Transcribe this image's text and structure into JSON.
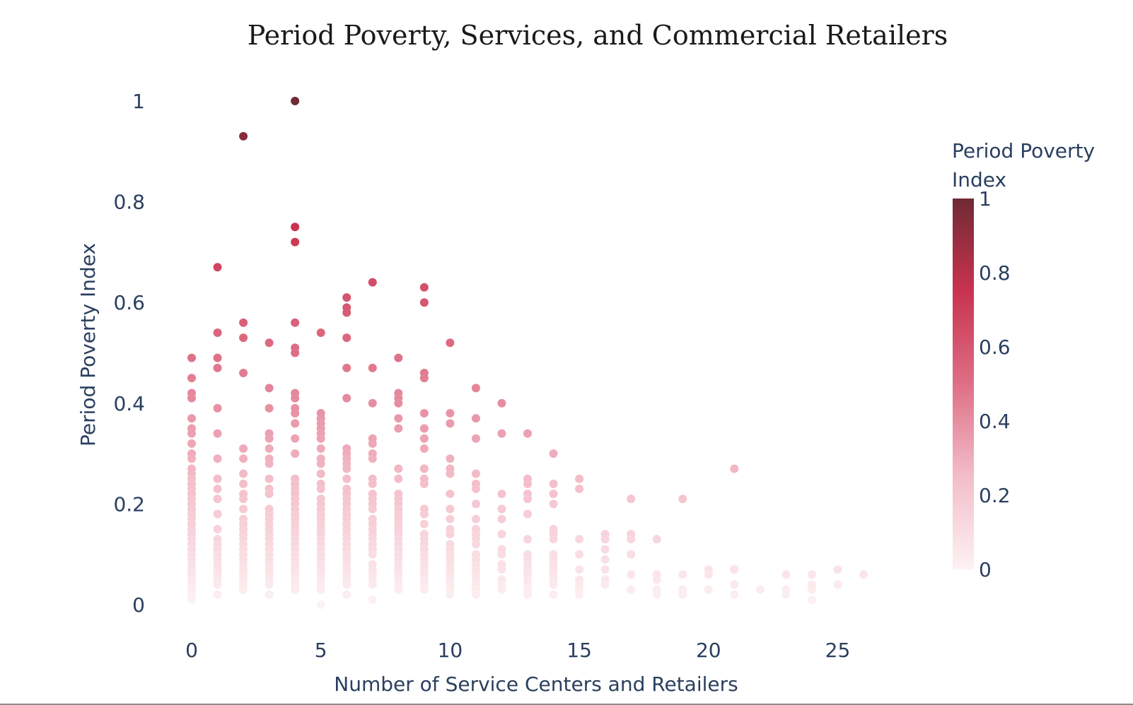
{
  "chart_data": {
    "type": "scatter",
    "title": "Period Poverty, Services, and Commercial Retailers",
    "xlabel": "Number of Service Centers and Retailers",
    "ylabel": "Period Poverty Index",
    "xlim": [
      -2,
      29
    ],
    "ylim": [
      -0.03,
      1.03
    ],
    "xticks": [
      0,
      5,
      10,
      15,
      20,
      25
    ],
    "yticks": [
      0,
      0.2,
      0.4,
      0.6,
      0.8,
      1
    ],
    "grid": false,
    "colorbar": {
      "title": "Period Poverty Index",
      "range": [
        0,
        1
      ],
      "ticks": [
        0,
        0.2,
        0.4,
        0.6,
        0.8,
        1
      ],
      "colors": [
        "#fdf2f3",
        "#f3bdc9",
        "#de6f86",
        "#c9334f",
        "#702a34"
      ]
    },
    "points": [
      [
        0,
        0.49
      ],
      [
        0,
        0.45
      ],
      [
        0,
        0.42
      ],
      [
        0,
        0.41
      ],
      [
        0,
        0.37
      ],
      [
        0,
        0.35
      ],
      [
        0,
        0.34
      ],
      [
        0,
        0.32
      ],
      [
        0,
        0.3
      ],
      [
        0,
        0.29
      ],
      [
        0,
        0.27
      ],
      [
        0,
        0.26
      ],
      [
        0,
        0.25
      ],
      [
        0,
        0.24
      ],
      [
        0,
        0.23
      ],
      [
        0,
        0.22
      ],
      [
        0,
        0.21
      ],
      [
        0,
        0.2
      ],
      [
        0,
        0.19
      ],
      [
        0,
        0.18
      ],
      [
        0,
        0.17
      ],
      [
        0,
        0.16
      ],
      [
        0,
        0.15
      ],
      [
        0,
        0.14
      ],
      [
        0,
        0.13
      ],
      [
        0,
        0.12
      ],
      [
        0,
        0.11
      ],
      [
        0,
        0.1
      ],
      [
        0,
        0.09
      ],
      [
        0,
        0.08
      ],
      [
        0,
        0.07
      ],
      [
        0,
        0.06
      ],
      [
        0,
        0.05
      ],
      [
        0,
        0.04
      ],
      [
        0,
        0.03
      ],
      [
        0,
        0.02
      ],
      [
        0,
        0.01
      ],
      [
        1,
        0.67
      ],
      [
        1,
        0.54
      ],
      [
        1,
        0.49
      ],
      [
        1,
        0.47
      ],
      [
        1,
        0.39
      ],
      [
        1,
        0.34
      ],
      [
        1,
        0.29
      ],
      [
        1,
        0.25
      ],
      [
        1,
        0.23
      ],
      [
        1,
        0.21
      ],
      [
        1,
        0.18
      ],
      [
        1,
        0.15
      ],
      [
        1,
        0.13
      ],
      [
        1,
        0.12
      ],
      [
        1,
        0.11
      ],
      [
        1,
        0.1
      ],
      [
        1,
        0.09
      ],
      [
        1,
        0.08
      ],
      [
        1,
        0.07
      ],
      [
        1,
        0.06
      ],
      [
        1,
        0.05
      ],
      [
        1,
        0.04
      ],
      [
        1,
        0.02
      ],
      [
        2,
        0.93
      ],
      [
        2,
        0.56
      ],
      [
        2,
        0.53
      ],
      [
        2,
        0.46
      ],
      [
        2,
        0.31
      ],
      [
        2,
        0.29
      ],
      [
        2,
        0.26
      ],
      [
        2,
        0.24
      ],
      [
        2,
        0.22
      ],
      [
        2,
        0.21
      ],
      [
        2,
        0.19
      ],
      [
        2,
        0.17
      ],
      [
        2,
        0.16
      ],
      [
        2,
        0.15
      ],
      [
        2,
        0.14
      ],
      [
        2,
        0.13
      ],
      [
        2,
        0.12
      ],
      [
        2,
        0.11
      ],
      [
        2,
        0.1
      ],
      [
        2,
        0.09
      ],
      [
        2,
        0.08
      ],
      [
        2,
        0.07
      ],
      [
        2,
        0.06
      ],
      [
        2,
        0.05
      ],
      [
        2,
        0.04
      ],
      [
        2,
        0.03
      ],
      [
        3,
        0.52
      ],
      [
        3,
        0.43
      ],
      [
        3,
        0.39
      ],
      [
        3,
        0.34
      ],
      [
        3,
        0.33
      ],
      [
        3,
        0.31
      ],
      [
        3,
        0.29
      ],
      [
        3,
        0.28
      ],
      [
        3,
        0.25
      ],
      [
        3,
        0.23
      ],
      [
        3,
        0.22
      ],
      [
        3,
        0.19
      ],
      [
        3,
        0.18
      ],
      [
        3,
        0.17
      ],
      [
        3,
        0.16
      ],
      [
        3,
        0.15
      ],
      [
        3,
        0.14
      ],
      [
        3,
        0.13
      ],
      [
        3,
        0.12
      ],
      [
        3,
        0.11
      ],
      [
        3,
        0.1
      ],
      [
        3,
        0.09
      ],
      [
        3,
        0.08
      ],
      [
        3,
        0.07
      ],
      [
        3,
        0.06
      ],
      [
        3,
        0.05
      ],
      [
        3,
        0.04
      ],
      [
        3,
        0.02
      ],
      [
        4,
        1.0
      ],
      [
        4,
        0.75
      ],
      [
        4,
        0.72
      ],
      [
        4,
        0.56
      ],
      [
        4,
        0.51
      ],
      [
        4,
        0.5
      ],
      [
        4,
        0.42
      ],
      [
        4,
        0.41
      ],
      [
        4,
        0.39
      ],
      [
        4,
        0.38
      ],
      [
        4,
        0.36
      ],
      [
        4,
        0.33
      ],
      [
        4,
        0.3
      ],
      [
        4,
        0.25
      ],
      [
        4,
        0.24
      ],
      [
        4,
        0.23
      ],
      [
        4,
        0.22
      ],
      [
        4,
        0.21
      ],
      [
        4,
        0.2
      ],
      [
        4,
        0.19
      ],
      [
        4,
        0.18
      ],
      [
        4,
        0.17
      ],
      [
        4,
        0.16
      ],
      [
        4,
        0.15
      ],
      [
        4,
        0.14
      ],
      [
        4,
        0.13
      ],
      [
        4,
        0.12
      ],
      [
        4,
        0.11
      ],
      [
        4,
        0.1
      ],
      [
        4,
        0.09
      ],
      [
        4,
        0.08
      ],
      [
        4,
        0.07
      ],
      [
        4,
        0.06
      ],
      [
        4,
        0.05
      ],
      [
        4,
        0.04
      ],
      [
        4,
        0.03
      ],
      [
        5,
        0.54
      ],
      [
        5,
        0.38
      ],
      [
        5,
        0.37
      ],
      [
        5,
        0.36
      ],
      [
        5,
        0.35
      ],
      [
        5,
        0.34
      ],
      [
        5,
        0.33
      ],
      [
        5,
        0.31
      ],
      [
        5,
        0.29
      ],
      [
        5,
        0.28
      ],
      [
        5,
        0.26
      ],
      [
        5,
        0.24
      ],
      [
        5,
        0.23
      ],
      [
        5,
        0.21
      ],
      [
        5,
        0.2
      ],
      [
        5,
        0.19
      ],
      [
        5,
        0.18
      ],
      [
        5,
        0.17
      ],
      [
        5,
        0.16
      ],
      [
        5,
        0.15
      ],
      [
        5,
        0.14
      ],
      [
        5,
        0.13
      ],
      [
        5,
        0.12
      ],
      [
        5,
        0.11
      ],
      [
        5,
        0.1
      ],
      [
        5,
        0.09
      ],
      [
        5,
        0.08
      ],
      [
        5,
        0.07
      ],
      [
        5,
        0.06
      ],
      [
        5,
        0.05
      ],
      [
        5,
        0.04
      ],
      [
        5,
        0.03
      ],
      [
        5,
        0.0
      ],
      [
        6,
        0.61
      ],
      [
        6,
        0.59
      ],
      [
        6,
        0.58
      ],
      [
        6,
        0.53
      ],
      [
        6,
        0.47
      ],
      [
        6,
        0.41
      ],
      [
        6,
        0.31
      ],
      [
        6,
        0.3
      ],
      [
        6,
        0.29
      ],
      [
        6,
        0.28
      ],
      [
        6,
        0.27
      ],
      [
        6,
        0.25
      ],
      [
        6,
        0.23
      ],
      [
        6,
        0.22
      ],
      [
        6,
        0.21
      ],
      [
        6,
        0.2
      ],
      [
        6,
        0.19
      ],
      [
        6,
        0.18
      ],
      [
        6,
        0.17
      ],
      [
        6,
        0.16
      ],
      [
        6,
        0.15
      ],
      [
        6,
        0.14
      ],
      [
        6,
        0.13
      ],
      [
        6,
        0.12
      ],
      [
        6,
        0.11
      ],
      [
        6,
        0.1
      ],
      [
        6,
        0.09
      ],
      [
        6,
        0.08
      ],
      [
        6,
        0.07
      ],
      [
        6,
        0.06
      ],
      [
        6,
        0.05
      ],
      [
        6,
        0.04
      ],
      [
        6,
        0.02
      ],
      [
        7,
        0.64
      ],
      [
        7,
        0.47
      ],
      [
        7,
        0.4
      ],
      [
        7,
        0.33
      ],
      [
        7,
        0.32
      ],
      [
        7,
        0.3
      ],
      [
        7,
        0.29
      ],
      [
        7,
        0.25
      ],
      [
        7,
        0.24
      ],
      [
        7,
        0.22
      ],
      [
        7,
        0.21
      ],
      [
        7,
        0.2
      ],
      [
        7,
        0.19
      ],
      [
        7,
        0.17
      ],
      [
        7,
        0.16
      ],
      [
        7,
        0.15
      ],
      [
        7,
        0.14
      ],
      [
        7,
        0.13
      ],
      [
        7,
        0.12
      ],
      [
        7,
        0.11
      ],
      [
        7,
        0.1
      ],
      [
        7,
        0.08
      ],
      [
        7,
        0.07
      ],
      [
        7,
        0.06
      ],
      [
        7,
        0.05
      ],
      [
        7,
        0.04
      ],
      [
        7,
        0.01
      ],
      [
        8,
        0.49
      ],
      [
        8,
        0.42
      ],
      [
        8,
        0.41
      ],
      [
        8,
        0.4
      ],
      [
        8,
        0.37
      ],
      [
        8,
        0.35
      ],
      [
        8,
        0.27
      ],
      [
        8,
        0.25
      ],
      [
        8,
        0.22
      ],
      [
        8,
        0.21
      ],
      [
        8,
        0.2
      ],
      [
        8,
        0.19
      ],
      [
        8,
        0.18
      ],
      [
        8,
        0.17
      ],
      [
        8,
        0.16
      ],
      [
        8,
        0.15
      ],
      [
        8,
        0.14
      ],
      [
        8,
        0.13
      ],
      [
        8,
        0.12
      ],
      [
        8,
        0.11
      ],
      [
        8,
        0.1
      ],
      [
        8,
        0.09
      ],
      [
        8,
        0.08
      ],
      [
        8,
        0.07
      ],
      [
        8,
        0.06
      ],
      [
        8,
        0.05
      ],
      [
        8,
        0.04
      ],
      [
        8,
        0.03
      ],
      [
        9,
        0.63
      ],
      [
        9,
        0.6
      ],
      [
        9,
        0.46
      ],
      [
        9,
        0.45
      ],
      [
        9,
        0.38
      ],
      [
        9,
        0.35
      ],
      [
        9,
        0.33
      ],
      [
        9,
        0.31
      ],
      [
        9,
        0.27
      ],
      [
        9,
        0.25
      ],
      [
        9,
        0.24
      ],
      [
        9,
        0.19
      ],
      [
        9,
        0.18
      ],
      [
        9,
        0.16
      ],
      [
        9,
        0.14
      ],
      [
        9,
        0.13
      ],
      [
        9,
        0.12
      ],
      [
        9,
        0.11
      ],
      [
        9,
        0.1
      ],
      [
        9,
        0.09
      ],
      [
        9,
        0.08
      ],
      [
        9,
        0.07
      ],
      [
        9,
        0.06
      ],
      [
        9,
        0.05
      ],
      [
        9,
        0.04
      ],
      [
        9,
        0.03
      ],
      [
        10,
        0.52
      ],
      [
        10,
        0.38
      ],
      [
        10,
        0.36
      ],
      [
        10,
        0.29
      ],
      [
        10,
        0.27
      ],
      [
        10,
        0.26
      ],
      [
        10,
        0.22
      ],
      [
        10,
        0.19
      ],
      [
        10,
        0.17
      ],
      [
        10,
        0.15
      ],
      [
        10,
        0.14
      ],
      [
        10,
        0.12
      ],
      [
        10,
        0.11
      ],
      [
        10,
        0.1
      ],
      [
        10,
        0.09
      ],
      [
        10,
        0.08
      ],
      [
        10,
        0.07
      ],
      [
        10,
        0.06
      ],
      [
        10,
        0.05
      ],
      [
        10,
        0.04
      ],
      [
        10,
        0.03
      ],
      [
        10,
        0.02
      ],
      [
        11,
        0.43
      ],
      [
        11,
        0.37
      ],
      [
        11,
        0.33
      ],
      [
        11,
        0.26
      ],
      [
        11,
        0.24
      ],
      [
        11,
        0.23
      ],
      [
        11,
        0.2
      ],
      [
        11,
        0.17
      ],
      [
        11,
        0.15
      ],
      [
        11,
        0.14
      ],
      [
        11,
        0.13
      ],
      [
        11,
        0.12
      ],
      [
        11,
        0.1
      ],
      [
        11,
        0.09
      ],
      [
        11,
        0.08
      ],
      [
        11,
        0.07
      ],
      [
        11,
        0.06
      ],
      [
        11,
        0.05
      ],
      [
        11,
        0.04
      ],
      [
        11,
        0.03
      ],
      [
        11,
        0.02
      ],
      [
        12,
        0.4
      ],
      [
        12,
        0.34
      ],
      [
        12,
        0.22
      ],
      [
        12,
        0.19
      ],
      [
        12,
        0.17
      ],
      [
        12,
        0.14
      ],
      [
        12,
        0.11
      ],
      [
        12,
        0.1
      ],
      [
        12,
        0.08
      ],
      [
        12,
        0.07
      ],
      [
        12,
        0.05
      ],
      [
        12,
        0.04
      ],
      [
        12,
        0.03
      ],
      [
        13,
        0.34
      ],
      [
        13,
        0.25
      ],
      [
        13,
        0.24
      ],
      [
        13,
        0.22
      ],
      [
        13,
        0.21
      ],
      [
        13,
        0.18
      ],
      [
        13,
        0.13
      ],
      [
        13,
        0.1
      ],
      [
        13,
        0.09
      ],
      [
        13,
        0.08
      ],
      [
        13,
        0.07
      ],
      [
        13,
        0.06
      ],
      [
        13,
        0.05
      ],
      [
        13,
        0.04
      ],
      [
        13,
        0.03
      ],
      [
        13,
        0.02
      ],
      [
        14,
        0.3
      ],
      [
        14,
        0.24
      ],
      [
        14,
        0.22
      ],
      [
        14,
        0.2
      ],
      [
        14,
        0.15
      ],
      [
        14,
        0.14
      ],
      [
        14,
        0.13
      ],
      [
        14,
        0.1
      ],
      [
        14,
        0.09
      ],
      [
        14,
        0.08
      ],
      [
        14,
        0.07
      ],
      [
        14,
        0.06
      ],
      [
        14,
        0.05
      ],
      [
        14,
        0.04
      ],
      [
        14,
        0.02
      ],
      [
        15,
        0.25
      ],
      [
        15,
        0.23
      ],
      [
        15,
        0.13
      ],
      [
        15,
        0.1
      ],
      [
        15,
        0.07
      ],
      [
        15,
        0.05
      ],
      [
        15,
        0.04
      ],
      [
        15,
        0.03
      ],
      [
        15,
        0.02
      ],
      [
        16,
        0.14
      ],
      [
        16,
        0.13
      ],
      [
        16,
        0.11
      ],
      [
        16,
        0.09
      ],
      [
        16,
        0.07
      ],
      [
        16,
        0.05
      ],
      [
        16,
        0.04
      ],
      [
        17,
        0.21
      ],
      [
        17,
        0.14
      ],
      [
        17,
        0.13
      ],
      [
        17,
        0.1
      ],
      [
        17,
        0.06
      ],
      [
        17,
        0.03
      ],
      [
        18,
        0.13
      ],
      [
        18,
        0.06
      ],
      [
        18,
        0.05
      ],
      [
        18,
        0.03
      ],
      [
        18,
        0.02
      ],
      [
        19,
        0.21
      ],
      [
        19,
        0.06
      ],
      [
        19,
        0.03
      ],
      [
        19,
        0.02
      ],
      [
        20,
        0.07
      ],
      [
        20,
        0.06
      ],
      [
        20,
        0.03
      ],
      [
        21,
        0.27
      ],
      [
        21,
        0.07
      ],
      [
        21,
        0.04
      ],
      [
        21,
        0.02
      ],
      [
        22,
        0.03
      ],
      [
        23,
        0.06
      ],
      [
        23,
        0.03
      ],
      [
        23,
        0.02
      ],
      [
        24,
        0.06
      ],
      [
        24,
        0.04
      ],
      [
        24,
        0.03
      ],
      [
        24,
        0.01
      ],
      [
        25,
        0.07
      ],
      [
        25,
        0.04
      ],
      [
        26,
        0.06
      ]
    ]
  }
}
